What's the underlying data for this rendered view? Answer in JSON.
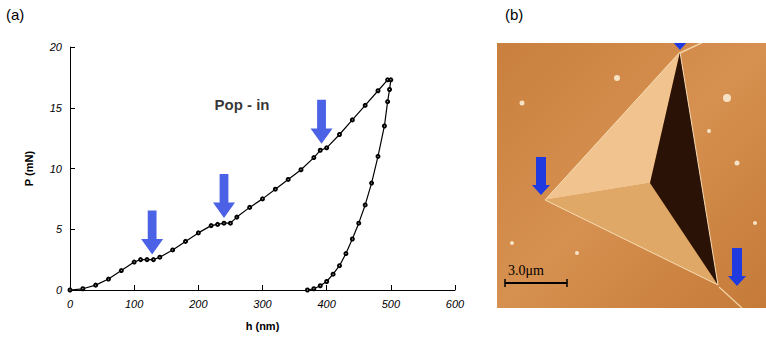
{
  "panel_labels": [
    "(a)",
    "(b)"
  ],
  "chart_data": {
    "type": "line",
    "xlabel": "h (nm)",
    "ylabel": "P (mN)",
    "x": [
      0,
      20,
      40,
      60,
      80,
      100,
      110,
      120,
      130,
      140,
      160,
      180,
      200,
      220,
      230,
      240,
      250,
      260,
      280,
      300,
      320,
      340,
      360,
      380,
      390,
      400,
      420,
      440,
      460,
      480,
      495,
      500,
      498,
      495,
      490,
      480,
      470,
      460,
      450,
      440,
      430,
      420,
      410,
      400,
      390,
      380,
      370
    ],
    "values": [
      0,
      0.1,
      0.4,
      0.9,
      1.6,
      2.3,
      2.5,
      2.5,
      2.5,
      2.7,
      3.3,
      4.0,
      4.7,
      5.3,
      5.4,
      5.5,
      5.5,
      6.0,
      6.8,
      7.5,
      8.3,
      9.1,
      9.9,
      10.9,
      11.5,
      11.7,
      12.8,
      14.0,
      15.2,
      16.4,
      17.3,
      17.3,
      16.5,
      15.5,
      13.5,
      11.0,
      8.8,
      7.0,
      5.5,
      4.2,
      3.0,
      2.0,
      1.3,
      0.7,
      0.35,
      0.1,
      0
    ],
    "color": "#000000",
    "marker": "circle",
    "xlim": [
      0,
      600
    ],
    "xticks": [
      0,
      100,
      200,
      300,
      400,
      500,
      600
    ],
    "ylim": [
      0,
      20
    ],
    "yticks": [
      0,
      5,
      10,
      15,
      20
    ],
    "grid": false,
    "annotations": [
      {
        "text": "Pop - in",
        "x": 268,
        "y": 15.3
      }
    ],
    "arrows": {
      "x": [
        128,
        240,
        392
      ],
      "values": [
        2.6,
        5.6,
        11.7
      ],
      "color": "#1f3be0"
    }
  },
  "image": {
    "scale_bar": "3.0μm"
  }
}
